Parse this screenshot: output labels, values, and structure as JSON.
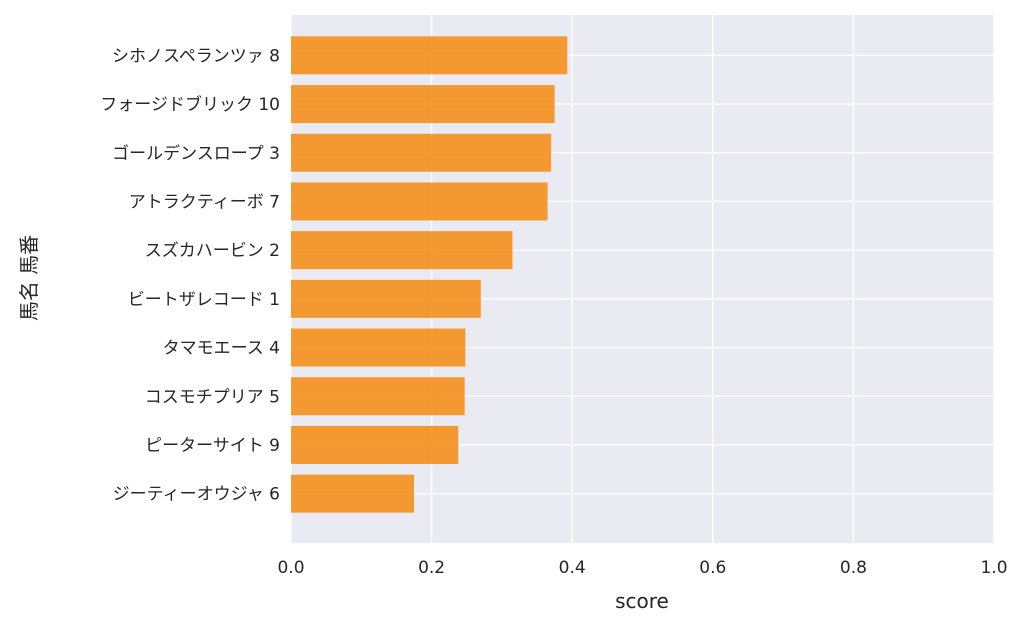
{
  "chart_data": {
    "type": "bar",
    "orientation": "horizontal",
    "title": "",
    "xlabel": "score",
    "ylabel": "馬名 馬番",
    "xlim": [
      0.0,
      1.0
    ],
    "x_ticks": [
      "0.0",
      "0.2",
      "0.4",
      "0.6",
      "0.8",
      "1.0"
    ],
    "grid": true,
    "legend": "none",
    "categories": [
      "シホノスペランツァ 8",
      "フォージドブリック 10",
      "ゴールデンスロープ 3",
      "アトラクティーボ 7",
      "スズカハービン 2",
      "ビートザレコード 1",
      "タマモエース 4",
      "コスモチプリア 5",
      "ピーターサイト 9",
      "ジーティーオウジャ 6"
    ],
    "values": [
      0.393,
      0.375,
      0.37,
      0.365,
      0.315,
      0.27,
      0.248,
      0.247,
      0.238,
      0.175
    ],
    "colors": {
      "bar": "#f5901d",
      "plot_background": "#eaeaf2",
      "grid": "#ffffff"
    }
  }
}
